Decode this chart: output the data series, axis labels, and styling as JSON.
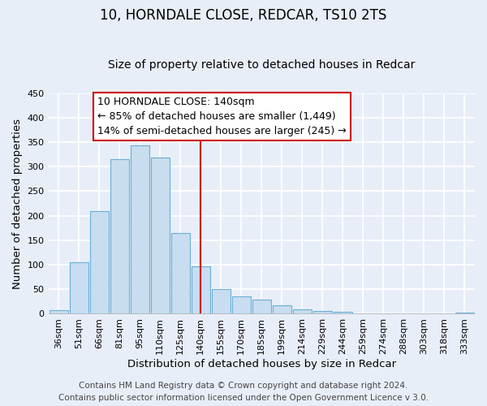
{
  "title": "10, HORNDALE CLOSE, REDCAR, TS10 2TS",
  "subtitle": "Size of property relative to detached houses in Redcar",
  "xlabel": "Distribution of detached houses by size in Redcar",
  "ylabel": "Number of detached properties",
  "bar_labels": [
    "36sqm",
    "51sqm",
    "66sqm",
    "81sqm",
    "95sqm",
    "110sqm",
    "125sqm",
    "140sqm",
    "155sqm",
    "170sqm",
    "185sqm",
    "199sqm",
    "214sqm",
    "229sqm",
    "244sqm",
    "259sqm",
    "274sqm",
    "288sqm",
    "303sqm",
    "318sqm",
    "333sqm"
  ],
  "bar_values": [
    7,
    105,
    210,
    315,
    343,
    318,
    165,
    97,
    50,
    36,
    29,
    18,
    9,
    5,
    4,
    1,
    0,
    0,
    0,
    0,
    2
  ],
  "bar_color": "#c8ddf0",
  "bar_edge_color": "#6aaed6",
  "vline_color": "#cc0000",
  "vline_position": 7.5,
  "annotation_line1": "10 HORNDALE CLOSE: 140sqm",
  "annotation_line2": "← 85% of detached houses are smaller (1,449)",
  "annotation_line3": "14% of semi-detached houses are larger (245) →",
  "ylim": [
    0,
    450
  ],
  "yticks": [
    0,
    50,
    100,
    150,
    200,
    250,
    300,
    350,
    400,
    450
  ],
  "footer_line1": "Contains HM Land Registry data © Crown copyright and database right 2024.",
  "footer_line2": "Contains public sector information licensed under the Open Government Licence v 3.0.",
  "background_color": "#e8eef8",
  "grid_color": "#ffffff",
  "title_fontsize": 12,
  "subtitle_fontsize": 10,
  "axis_label_fontsize": 9.5,
  "tick_fontsize": 8,
  "annotation_fontsize": 9,
  "footer_fontsize": 7.5
}
